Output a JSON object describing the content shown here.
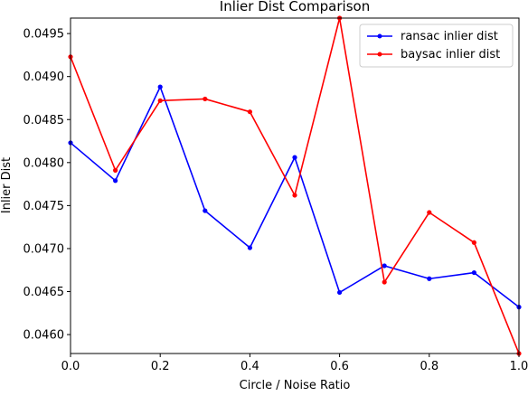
{
  "chart_data": {
    "type": "line",
    "title": "Inlier Dist Comparison",
    "xlabel": "Circle / Noise Ratio",
    "ylabel": "Inlier Dist",
    "xlim": [
      0.0,
      1.0
    ],
    "ylim": [
      0.04578,
      0.04968
    ],
    "xticks": [
      0.0,
      0.2,
      0.4,
      0.6,
      0.8,
      1.0
    ],
    "xtick_labels": [
      "0.0",
      "0.2",
      "0.4",
      "0.6",
      "0.8",
      "1.0"
    ],
    "yticks": [
      0.046,
      0.0465,
      0.047,
      0.0475,
      0.048,
      0.0485,
      0.049,
      0.0495
    ],
    "ytick_labels": [
      "0.0460",
      "0.0465",
      "0.0470",
      "0.0475",
      "0.0480",
      "0.0485",
      "0.0490",
      "0.0495"
    ],
    "grid": false,
    "legend_position": "top-right",
    "x": [
      0.0,
      0.1,
      0.2,
      0.3,
      0.4,
      0.5,
      0.6,
      0.7,
      0.8,
      0.9,
      1.0
    ],
    "series": [
      {
        "name": "ransac inlier dist",
        "color": "#0000ff",
        "values": [
          0.04823,
          0.04779,
          0.04888,
          0.04744,
          0.04701,
          0.04806,
          0.04649,
          0.0468,
          0.04665,
          0.04672,
          0.04632
        ]
      },
      {
        "name": "baysac inlier dist",
        "color": "#ff0000",
        "values": [
          0.04923,
          0.04791,
          0.04872,
          0.04874,
          0.04859,
          0.04762,
          0.04968,
          0.04661,
          0.04742,
          0.04707,
          0.04578
        ]
      }
    ]
  }
}
